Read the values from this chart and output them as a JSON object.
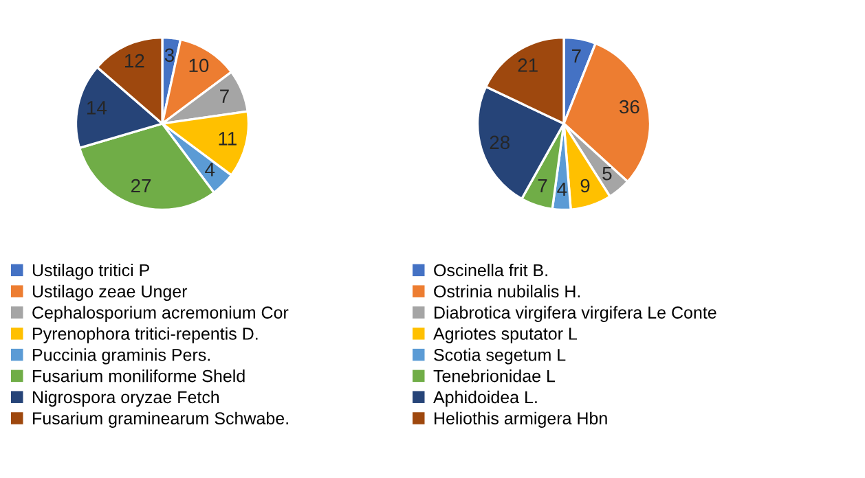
{
  "chart_data": [
    {
      "type": "pie",
      "categories": [
        "Ustilago tritici P",
        "Ustilago zeae Unger",
        "Cephalosporium acremonium Cor",
        "Pyrenophora tritici-repentis D.",
        "Puccinia graminis Pers.",
        "Fusarium moniliforme Sheld",
        "Nigrospora oryzae Fetch",
        "Fusarium graminearum Schwabe."
      ],
      "values": [
        3,
        10,
        7,
        11,
        4,
        27,
        14,
        12
      ],
      "colors": [
        "#4472c4",
        "#ed7d31",
        "#a5a5a5",
        "#ffc000",
        "#5b9bd5",
        "#70ad47",
        "#264478",
        "#9e480e"
      ],
      "data_labels": true,
      "legend": "bottom"
    },
    {
      "type": "pie",
      "categories": [
        "Oscinella frit B.",
        "Ostrinia nubilalis H.",
        "Diabrotica virgifera virgifera Le Conte",
        "Agriotes sputator L",
        "Scotia segetum L",
        "Tenebrionidae L",
        "Aphidoidea L.",
        "Heliothis armigera Hbn"
      ],
      "values": [
        7,
        36,
        5,
        9,
        4,
        7,
        28,
        21
      ],
      "colors": [
        "#4472c4",
        "#ed7d31",
        "#a5a5a5",
        "#ffc000",
        "#5b9bd5",
        "#70ad47",
        "#264478",
        "#9e480e"
      ],
      "data_labels": true,
      "legend": "bottom"
    }
  ]
}
